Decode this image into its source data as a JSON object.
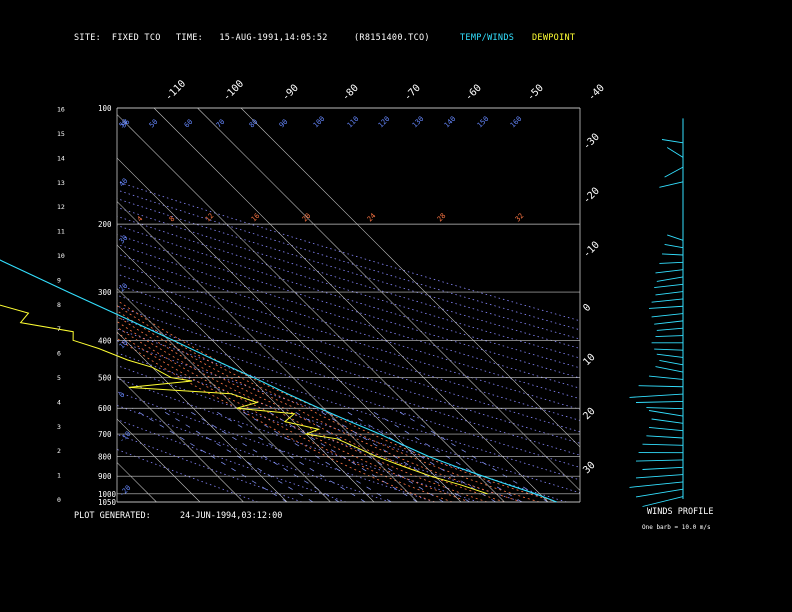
{
  "header": {
    "site": "SITE:  FIXED TCO",
    "time": "TIME:   15-AUG-1991,14:05:52",
    "file": "(R8151400.TCO)",
    "temp_label": "TEMP/WINDS",
    "dew_label": "DEWPOINT"
  },
  "footer": {
    "plot_generated": "PLOT GENERATED:",
    "plot_date": "24-JUN-1994,03:12:00",
    "winds_profile": "WINDS PROFILE",
    "barb_note": "One barb = 10.0 m/s"
  },
  "colors": {
    "temp": "#33e0ff",
    "dew": "#ffff33",
    "grid": "#c8c8c8",
    "mixing": "#5577ff",
    "moist": "#ff7744",
    "dry": "#8888ff"
  },
  "chart_data": {
    "type": "line",
    "subtype": "skew-t",
    "pressure_levels": [
      100,
      200,
      300,
      400,
      500,
      600,
      700,
      800,
      900,
      1000,
      1050
    ],
    "height_ticks_km": [
      0,
      1,
      2,
      3,
      4,
      5,
      6,
      7,
      8,
      9,
      10,
      11,
      12,
      13,
      14,
      15,
      16
    ],
    "isotherm_labels_top": [
      "-110",
      "-100",
      "-90",
      "-80",
      "-70",
      "-60",
      "-50",
      "-40"
    ],
    "isotherm_labels_right": [
      "-30",
      "-20",
      "-10",
      "0",
      "10",
      "20",
      "30"
    ],
    "mixing_labels_top": [
      "56",
      "50",
      "60",
      "70",
      "80",
      "90",
      "100",
      "110",
      "120",
      "130",
      "140",
      "150",
      "160"
    ],
    "mixing_labels_left": [
      "50",
      "40",
      "30",
      "20",
      "10",
      "0",
      "-10",
      "-20",
      "-30",
      "-35"
    ],
    "moist_labels": [
      "4",
      "8",
      "12",
      "16",
      "20",
      "24",
      "28",
      "32"
    ],
    "temperature_profile": [
      {
        "p": 1050,
        "t": 32
      },
      {
        "p": 1000,
        "t": 29
      },
      {
        "p": 950,
        "t": 25
      },
      {
        "p": 900,
        "t": 21
      },
      {
        "p": 850,
        "t": 17
      },
      {
        "p": 800,
        "t": 13
      },
      {
        "p": 750,
        "t": 10
      },
      {
        "p": 700,
        "t": 7
      },
      {
        "p": 650,
        "t": 3
      },
      {
        "p": 600,
        "t": -1
      },
      {
        "p": 550,
        "t": -5
      },
      {
        "p": 500,
        "t": -9
      },
      {
        "p": 450,
        "t": -14
      },
      {
        "p": 400,
        "t": -19
      },
      {
        "p": 350,
        "t": -25
      },
      {
        "p": 300,
        "t": -32
      },
      {
        "p": 250,
        "t": -40
      },
      {
        "p": 200,
        "t": -49
      },
      {
        "p": 175,
        "t": -55
      },
      {
        "p": 150,
        "t": -62
      },
      {
        "p": 130,
        "t": -67
      },
      {
        "p": 110,
        "t": -66
      },
      {
        "p": 100,
        "t": -64
      }
    ],
    "dewpoint_profile": [
      {
        "p": 1000,
        "t": 18
      },
      {
        "p": 950,
        "t": 14
      },
      {
        "p": 900,
        "t": 9
      },
      {
        "p": 850,
        "t": 5
      },
      {
        "p": 800,
        "t": 1
      },
      {
        "p": 750,
        "t": -2
      },
      {
        "p": 720,
        "t": -4
      },
      {
        "p": 700,
        "t": -10
      },
      {
        "p": 680,
        "t": -6
      },
      {
        "p": 650,
        "t": -12
      },
      {
        "p": 620,
        "t": -8
      },
      {
        "p": 600,
        "t": -20
      },
      {
        "p": 580,
        "t": -14
      },
      {
        "p": 550,
        "t": -18
      },
      {
        "p": 530,
        "t": -40
      },
      {
        "p": 510,
        "t": -24
      },
      {
        "p": 500,
        "t": -28
      },
      {
        "p": 470,
        "t": -30
      },
      {
        "p": 450,
        "t": -34
      },
      {
        "p": 420,
        "t": -38
      },
      {
        "p": 400,
        "t": -42
      },
      {
        "p": 380,
        "t": -40
      },
      {
        "p": 360,
        "t": -50
      },
      {
        "p": 340,
        "t": -46
      },
      {
        "p": 320,
        "t": -52
      },
      {
        "p": 300,
        "t": -58
      },
      {
        "p": 270,
        "t": -62
      },
      {
        "p": 250,
        "t": -66
      },
      {
        "p": 230,
        "t": -68
      },
      {
        "p": 210,
        "t": -70
      },
      {
        "p": 200,
        "t": -72
      }
    ],
    "wind_profile": [
      {
        "km": 0.1,
        "speed": 25,
        "dir": 300
      },
      {
        "km": 0.4,
        "speed": 30,
        "dir": 290
      },
      {
        "km": 0.7,
        "speed": 35,
        "dir": 280
      },
      {
        "km": 1.0,
        "speed": 30,
        "dir": 270
      },
      {
        "km": 1.3,
        "speed": 25,
        "dir": 265
      },
      {
        "km": 1.6,
        "speed": 30,
        "dir": 260
      },
      {
        "km": 1.9,
        "speed": 28,
        "dir": 255
      },
      {
        "km": 2.2,
        "speed": 25,
        "dir": 250
      },
      {
        "km": 2.5,
        "speed": 22,
        "dir": 245
      },
      {
        "km": 2.8,
        "speed": 20,
        "dir": 240
      },
      {
        "km": 3.1,
        "speed": 18,
        "dir": 235
      },
      {
        "km": 3.4,
        "speed": 20,
        "dir": 230
      },
      {
        "km": 3.7,
        "speed": 22,
        "dir": 250
      },
      {
        "km": 4.0,
        "speed": 30,
        "dir": 260
      },
      {
        "km": 4.3,
        "speed": 35,
        "dir": 270
      },
      {
        "km": 4.6,
        "speed": 28,
        "dir": 250
      },
      {
        "km": 4.9,
        "speed": 20,
        "dir": 240
      },
      {
        "km": 5.2,
        "speed": 15,
        "dir": 230
      },
      {
        "km": 5.5,
        "speed": 12,
        "dir": 235
      },
      {
        "km": 5.8,
        "speed": 14,
        "dir": 240
      },
      {
        "km": 6.1,
        "speed": 16,
        "dir": 250
      },
      {
        "km": 6.4,
        "speed": 18,
        "dir": 255
      },
      {
        "km": 6.7,
        "speed": 15,
        "dir": 260
      },
      {
        "km": 7.0,
        "speed": 14,
        "dir": 265
      },
      {
        "km": 7.3,
        "speed": 16,
        "dir": 270
      },
      {
        "km": 7.6,
        "speed": 18,
        "dir": 270
      },
      {
        "km": 7.9,
        "speed": 20,
        "dir": 265
      },
      {
        "km": 8.2,
        "speed": 18,
        "dir": 270
      },
      {
        "km": 8.5,
        "speed": 15,
        "dir": 270
      },
      {
        "km": 8.8,
        "speed": 16,
        "dir": 270
      },
      {
        "km": 9.1,
        "speed": 14,
        "dir": 275
      },
      {
        "km": 9.4,
        "speed": 15,
        "dir": 270
      },
      {
        "km": 9.7,
        "speed": 12,
        "dir": 260
      },
      {
        "km": 10.0,
        "speed": 10,
        "dir": 250
      },
      {
        "km": 10.3,
        "speed": 8,
        "dir": 240
      },
      {
        "km": 10.6,
        "speed": 6,
        "dir": 230
      },
      {
        "km": 13.0,
        "speed": 12,
        "dir": 280
      },
      {
        "km": 13.6,
        "speed": 8,
        "dir": 300
      },
      {
        "km": 14.0,
        "speed": 6,
        "dir": 210
      },
      {
        "km": 14.6,
        "speed": 10,
        "dir": 240
      }
    ]
  }
}
